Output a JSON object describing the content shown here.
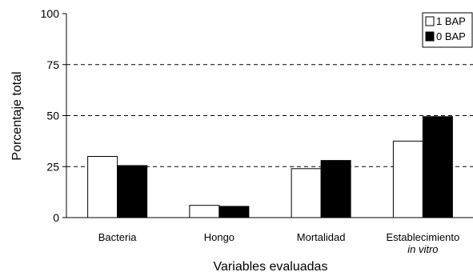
{
  "chart_data": {
    "type": "bar",
    "title": "",
    "xlabel": "Variables evaluadas",
    "ylabel": "Porcentaje total",
    "ylim": [
      0,
      100
    ],
    "yticks": [
      0,
      25,
      50,
      75,
      100
    ],
    "grid": "dashed horizontal at 25, 50, 75",
    "legend_position": "top-right",
    "categories": [
      {
        "line1": "Bacteria",
        "line2": ""
      },
      {
        "line1": "Hongo",
        "line2": ""
      },
      {
        "line1": "Mortalidad",
        "line2": ""
      },
      {
        "line1": "Establecimiento",
        "line2": "in vitro"
      }
    ],
    "series": [
      {
        "name": "1 BAP",
        "color": "#ffffff",
        "values": [
          30,
          6,
          24,
          37.5
        ]
      },
      {
        "name": "0 BAP",
        "color": "#000000",
        "values": [
          25.5,
          5.5,
          28,
          49.5
        ]
      }
    ]
  }
}
